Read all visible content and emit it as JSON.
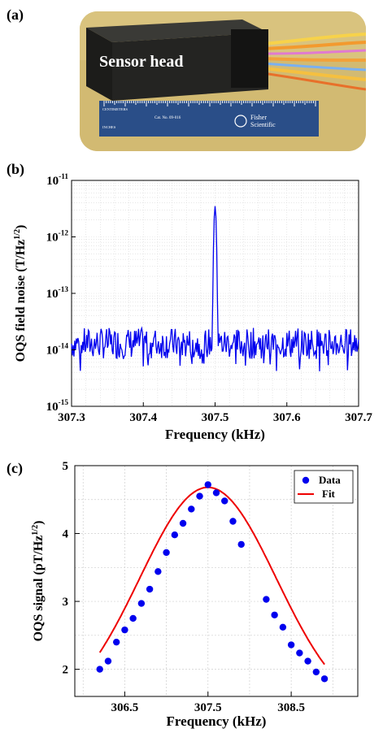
{
  "panels": {
    "a": {
      "label": "(a)",
      "photo_caption": "Sensor head",
      "ruler_text": {
        "centimeters": "CENTIMETERS",
        "inches": "INCHES",
        "cat_no": "Cat. No. 09-016",
        "brand_line1": "Fisher",
        "brand_line2": "Scientific"
      }
    },
    "b": {
      "label": "(b)"
    },
    "c": {
      "label": "(c)"
    }
  },
  "chart_data": [
    {
      "id": "b",
      "type": "line",
      "xlabel": "Frequency (kHz)",
      "ylabel": "OQS field noise (T/Hz^1/2)",
      "xlim": [
        307.3,
        307.7
      ],
      "ylim": [
        1e-15,
        1e-11
      ],
      "yscale": "log",
      "grid": true,
      "x_ticks": [
        307.3,
        307.4,
        307.5,
        307.6,
        307.7
      ],
      "x_tick_labels": [
        "307.3",
        "307.4",
        "307.5",
        "307.6",
        "307.7"
      ],
      "y_ticks": [
        1e-15,
        1e-14,
        1e-13,
        1e-12,
        1e-11
      ],
      "y_tick_labels": [
        {
          "base": "10",
          "exp": "-15"
        },
        {
          "base": "10",
          "exp": "-14"
        },
        {
          "base": "10",
          "exp": "-13"
        },
        {
          "base": "10",
          "exp": "-12"
        },
        {
          "base": "10",
          "exp": "-11"
        }
      ],
      "series": [
        {
          "color": "#0000ee",
          "baseline": 1.3e-14,
          "noise_floor_range": [
            4e-15,
            2.3e-14
          ],
          "peak": {
            "x": 307.5,
            "y": 3.5e-12
          },
          "x": [
            307.3,
            307.325,
            307.35,
            307.37,
            307.375,
            307.4,
            307.425,
            307.45,
            307.475,
            307.49,
            307.495,
            307.497,
            307.499,
            307.5,
            307.501,
            307.503,
            307.505,
            307.51,
            307.525,
            307.55,
            307.575,
            307.6,
            307.625,
            307.65,
            307.675,
            307.7
          ],
          "y": [
            5e-15,
            1.8e-14,
            1.5e-14,
            4e-15,
            2.2e-14,
            1.4e-14,
            1.9e-14,
            1.1e-14,
            1.6e-14,
            1.5e-14,
            3e-14,
            5e-13,
            3.5e-12,
            4e-13,
            1.2e-13,
            2.5e-14,
            1.4e-14,
            1.3e-14,
            1.8e-14,
            1.2e-14,
            2e-14,
            1.5e-14,
            1.9e-14,
            1.1e-14,
            1.7e-14,
            1.3e-14
          ]
        }
      ]
    },
    {
      "id": "c",
      "type": "scatter",
      "xlabel": "Frequency (kHz)",
      "ylabel": "OQS signal (pT/Hz^1/2)",
      "xlim": [
        305.9,
        309.3
      ],
      "ylim": [
        1.6,
        5.0
      ],
      "grid": true,
      "x_ticks": [
        306.5,
        307.5,
        308.5
      ],
      "x_tick_labels": [
        "306.5",
        "307.5",
        "308.5"
      ],
      "y_ticks": [
        2,
        3,
        4,
        5
      ],
      "y_tick_labels": [
        "2",
        "3",
        "4",
        "5"
      ],
      "legend": {
        "position": "top-right",
        "entries": [
          "Data",
          "Fit"
        ]
      },
      "series": [
        {
          "name": "Data",
          "kind": "scatter",
          "color": "#0000ee",
          "x": [
            306.2,
            306.3,
            306.4,
            306.5,
            306.6,
            306.7,
            306.8,
            306.9,
            307.0,
            307.1,
            307.2,
            307.3,
            307.4,
            307.5,
            307.6,
            307.7,
            307.8,
            307.9,
            308.2,
            308.3,
            308.4,
            308.5,
            308.6,
            308.7,
            308.8,
            308.9
          ],
          "y": [
            2.0,
            2.12,
            2.4,
            2.58,
            2.75,
            2.97,
            3.18,
            3.44,
            3.72,
            3.98,
            4.15,
            4.36,
            4.55,
            4.72,
            4.6,
            4.48,
            4.18,
            3.84,
            3.03,
            2.8,
            2.62,
            2.36,
            2.24,
            2.12,
            1.96,
            1.86
          ]
        },
        {
          "name": "Fit",
          "kind": "line",
          "color": "#ee0000",
          "model": {
            "center": 307.5,
            "amplitude": 3.4,
            "offset": 1.28,
            "sigma": 0.82
          }
        }
      ]
    }
  ]
}
